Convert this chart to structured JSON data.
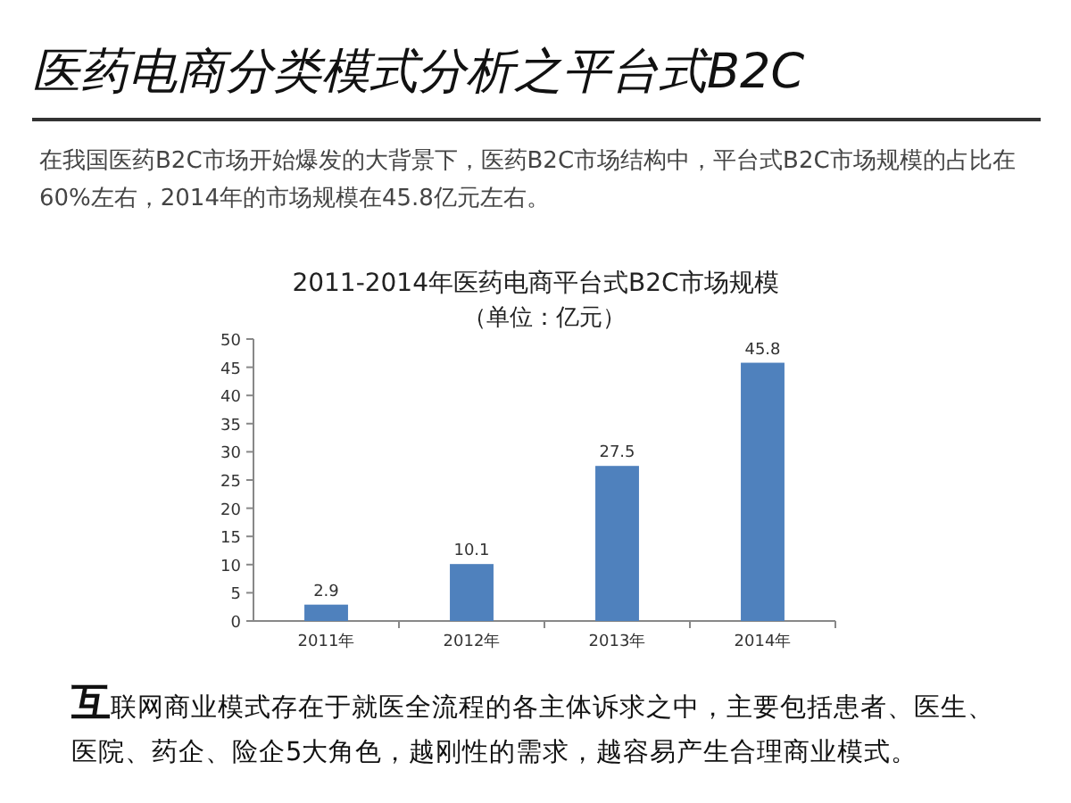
{
  "chart_data": {
    "type": "bar",
    "title": "2011-2014年医药电商平台式B2C市场规模",
    "subtitle": "（单位：亿元）",
    "annotations": [
      "医药电商分类模式分析之平台式B2C",
      "在我国医药B2C市场开始爆发的大背景下，医药B2C市场结构中，平台式B2C市场规模的占比在60%左右，2014年的市场规模在45.8亿元左右。",
      "互联网商业模式存在于就医全流程的各主体诉求之中，主要包括患者、医生、医院、药企、险企5大角色，越刚性的需求，越容易产生合理商业模式。"
    ],
    "categories": [
      "2011年",
      "2012年",
      "2013年",
      "2014年"
    ],
    "values": [
      2.9,
      10.1,
      27.5,
      45.8
    ],
    "color": "#4f81bd",
    "ylim": [
      0,
      50
    ],
    "yticks": [
      0,
      5,
      10,
      15,
      20,
      25,
      30,
      35,
      40,
      45,
      50
    ],
    "data_labels": true
  }
}
